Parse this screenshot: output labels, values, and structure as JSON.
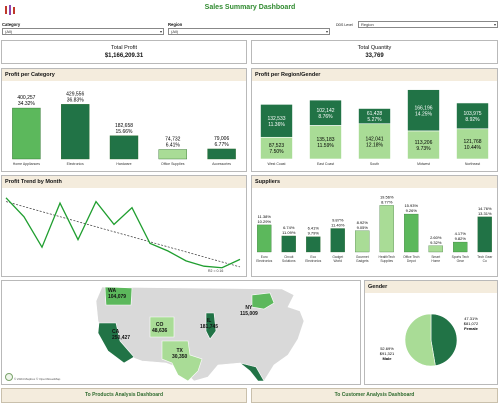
{
  "header": {
    "title": "Sales Summary Dashboard",
    "logo_icon": "tableau-logo-icon"
  },
  "filters": {
    "category": {
      "label": "Category",
      "value": "(All)"
    },
    "region": {
      "label": "Region",
      "value": "(All)"
    },
    "level": {
      "label": "DDS Level",
      "value": "Region"
    }
  },
  "kpis": {
    "total_profit": {
      "label": "Total Profit",
      "value": "$1,166,209.31"
    },
    "total_quantity": {
      "label": "Total Quantity",
      "value": "33,769"
    }
  },
  "panels": {
    "profit_category": "Profit per Category",
    "profit_region_gender": "Profit per Region/Gender",
    "profit_trend": "Profit Trend by Month",
    "suppliers": "Suppliers",
    "gender": "Gender"
  },
  "colors": {
    "dark": "#217346",
    "mid": "#5cb85c",
    "light": "#a9dc96",
    "line": "#1f9e2f",
    "map_land": "#d9d9d9"
  },
  "chart_data": [
    {
      "type": "bar",
      "title": "Profit per Category",
      "categories": [
        "Home Appliances",
        "Electronics",
        "Hardware",
        "Office Supplies",
        "Accessories"
      ],
      "values": [
        400257,
        429556,
        182658,
        74732,
        79006
      ],
      "labels": [
        "400,257",
        "429,556",
        "182,658",
        "74,732",
        "79,006"
      ],
      "percents": [
        "34.32%",
        "36.83%",
        "15.66%",
        "6.41%",
        "6.77%"
      ],
      "shades": [
        "#5cb85c",
        "#217346",
        "#217346",
        "#a9dc96",
        "#217346"
      ],
      "ylim": [
        0,
        440000
      ]
    },
    {
      "type": "bar",
      "title": "Profit per Region/Gender",
      "categories": [
        "West Coast",
        "East Coast",
        "South",
        "Midwest",
        "Northeast"
      ],
      "stacked": true,
      "series": [
        {
          "values": [
            87523,
            135183,
            142041,
            113206,
            121768
          ],
          "percents": [
            "7.50%",
            "11.59%",
            "12.18%",
            "9.73%",
            "10.44%"
          ],
          "labels": [
            "87,523",
            "135,183",
            "142,041",
            "113,206",
            "121,768"
          ]
        },
        {
          "values": [
            132533,
            102142,
            61428,
            166196,
            103975
          ],
          "percents": [
            "11.36%",
            "8.76%",
            "5.27%",
            "14.25%",
            "8.92%"
          ],
          "labels": [
            "132,533",
            "102,142",
            "61,428",
            "166,196",
            "103,975"
          ]
        }
      ],
      "ylim": [
        0,
        290000
      ]
    },
    {
      "type": "line",
      "title": "Profit Trend by Month",
      "values": [
        95,
        70,
        30,
        88,
        40,
        90,
        60,
        82,
        35,
        25,
        12,
        5,
        3,
        14
      ],
      "trend_start": 90,
      "trend_end": 4,
      "trend_label": "R2 = 0.16",
      "ylim": [
        0,
        100
      ]
    },
    {
      "type": "bar",
      "title": "Suppliers",
      "categories": [
        "Euro Electronics",
        "Circuit Solutions",
        "Eco Electronics",
        "Gadget World",
        "Gourmet Gadgets",
        "HealthTech Supplies",
        "Office Tech Depot",
        "Smart Home",
        "Sports Tech Gear",
        "Tech Gear Co"
      ],
      "values": [
        11.38,
        6.74,
        6.41,
        9.87,
        8.92,
        19.56,
        15.93,
        2.6,
        4.17,
        14.76
      ],
      "percents_top": [
        "11.38%",
        "6.74%",
        "6.41%",
        "9.87%",
        "8.92%",
        "19.56%",
        "15.93%",
        "2.60%",
        "4.17%",
        "14.76%"
      ],
      "percents_second": [
        "10.29%",
        "11.09%",
        "9.79%",
        "11.40%",
        "9.05%",
        "8.77%",
        "9.26%",
        "9.32%",
        "9.82%",
        "13.31%"
      ],
      "shades": [
        "#5cb85c",
        "#217346",
        "#217346",
        "#217346",
        "#a9dc96",
        "#a9dc96",
        "#5cb85c",
        "#a9dc96",
        "#5cb85c",
        "#217346"
      ],
      "ylim": [
        0,
        21
      ]
    },
    {
      "type": "pie",
      "title": "Gender",
      "slices": [
        {
          "name": "Female",
          "value": 47.31,
          "percent": "47.31%",
          "amount": "$81,072"
        },
        {
          "name": "Male",
          "value": 52.69,
          "percent": "52.69%",
          "amount": "$91,321"
        }
      ]
    }
  ],
  "map": {
    "states": [
      {
        "code": "WA",
        "value": "104,079"
      },
      {
        "code": "CA",
        "value": "250,427"
      },
      {
        "code": "CO",
        "value": "48,636"
      },
      {
        "code": "TX",
        "value": "30,350"
      },
      {
        "code": "IL",
        "value": "181,745"
      },
      {
        "code": "NY",
        "value": "115,009"
      }
    ],
    "attribution": "© 2024 Mapbox © OpenStreetMap"
  },
  "footer": {
    "products_link": "To Products Analysis Dashboard",
    "customer_link": "To Customer Analysis Dashboard"
  }
}
